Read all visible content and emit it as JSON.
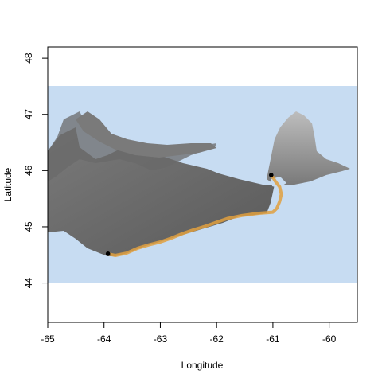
{
  "map": {
    "xlabel": "Longitude",
    "ylabel": "Latitude",
    "xlim": [
      -65,
      -59.5
    ],
    "ylim": [
      43.3,
      48.2
    ],
    "x_ticks": [
      -65,
      -64,
      -63,
      -62,
      -61,
      -60
    ],
    "y_ticks": [
      44,
      45,
      46,
      47,
      48
    ],
    "raster_extent": {
      "lon": [
        -65,
        -59.5
      ],
      "lat": [
        44,
        47.5
      ]
    },
    "colors": {
      "water": "#c7dcf2",
      "land_dark": "#606060",
      "land_mid": "#8c8c8c",
      "land_light": "#d8d8d8",
      "track": "#e0a040",
      "point": "#000000"
    },
    "route": [
      [
        -63.93,
        44.52
      ],
      [
        -63.8,
        44.49
      ],
      [
        -63.6,
        44.53
      ],
      [
        -63.4,
        44.62
      ],
      [
        -63.2,
        44.68
      ],
      [
        -63.0,
        44.73
      ],
      [
        -62.8,
        44.8
      ],
      [
        -62.6,
        44.88
      ],
      [
        -62.4,
        44.95
      ],
      [
        -62.2,
        45.01
      ],
      [
        -62.0,
        45.08
      ],
      [
        -61.8,
        45.15
      ],
      [
        -61.55,
        45.2
      ],
      [
        -61.25,
        45.24
      ],
      [
        -61.0,
        45.26
      ],
      [
        -60.93,
        45.33
      ],
      [
        -60.88,
        45.45
      ],
      [
        -60.85,
        45.58
      ],
      [
        -60.88,
        45.71
      ],
      [
        -60.95,
        45.8
      ],
      [
        -61.0,
        45.88
      ]
    ],
    "points": [
      {
        "lon": -63.93,
        "lat": 44.52
      },
      {
        "lon": -61.03,
        "lat": 45.92
      }
    ]
  }
}
